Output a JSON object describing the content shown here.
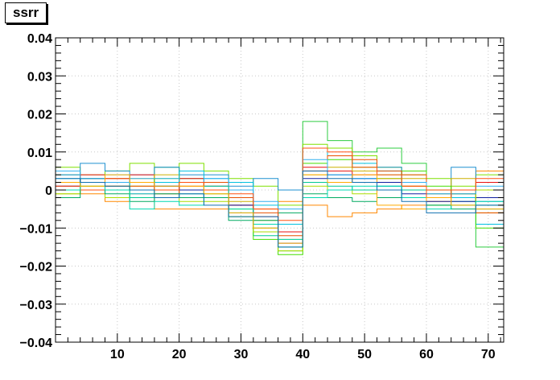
{
  "chart_data": {
    "type": "line",
    "title": "ssrr",
    "xlabel": "",
    "ylabel": "",
    "xlim": [
      0,
      72.5
    ],
    "ylim": [
      -0.04,
      0.04
    ],
    "grid": true,
    "x_bin_edges": [
      0,
      4,
      8,
      12,
      16,
      20,
      24,
      28,
      32,
      36,
      40,
      44,
      48,
      52,
      56,
      60,
      64,
      68,
      72.5
    ],
    "xticks": [
      10,
      20,
      30,
      40,
      50,
      60,
      70
    ],
    "xtick_labels": [
      "10",
      "20",
      "30",
      "40",
      "50",
      "60",
      "70"
    ],
    "yticks": [
      -0.04,
      -0.03,
      -0.02,
      -0.01,
      0,
      0.01,
      0.02,
      0.03,
      0.04
    ],
    "ytick_labels": [
      "−0.04",
      "−0.03",
      "−0.02",
      "−0.01",
      "0",
      "0.01",
      "0.02",
      "0.03",
      "0.04"
    ],
    "series": [
      {
        "color": "#2ecc40",
        "values": [
          0.004,
          0.003,
          0.002,
          0.001,
          0.006,
          0.003,
          0.001,
          -0.007,
          -0.01,
          -0.016,
          0.018,
          0.013,
          0.01,
          0.011,
          0.007,
          -0.002,
          0.0,
          -0.015
        ]
      },
      {
        "color": "#7fe000",
        "values": [
          0.006,
          0.004,
          0.005,
          0.007,
          0.002,
          0.007,
          0.005,
          0.003,
          0.001,
          -0.004,
          0.012,
          0.011,
          0.009,
          0.006,
          0.004,
          0.003,
          0.001,
          0.004
        ]
      },
      {
        "color": "#ff8800",
        "values": [
          0.0,
          -0.001,
          -0.003,
          -0.001,
          -0.005,
          -0.005,
          -0.005,
          -0.004,
          -0.005,
          -0.003,
          -0.004,
          -0.007,
          -0.006,
          -0.005,
          -0.004,
          -0.003,
          -0.002,
          0.005
        ]
      },
      {
        "color": "#1e90d0",
        "values": [
          0.004,
          0.007,
          0.005,
          0.004,
          0.006,
          0.004,
          0.004,
          0.001,
          0.003,
          0.0,
          0.002,
          0.004,
          0.003,
          0.006,
          0.002,
          -0.001,
          0.006,
          -0.003
        ]
      },
      {
        "color": "#e81010",
        "values": [
          0.001,
          0.004,
          0.003,
          0.004,
          0.002,
          0.003,
          0.001,
          -0.004,
          -0.007,
          -0.011,
          0.006,
          0.005,
          0.004,
          0.003,
          0.001,
          -0.002,
          -0.001,
          0.002
        ]
      },
      {
        "color": "#00c890",
        "values": [
          0.002,
          0.001,
          0.0,
          -0.002,
          0.001,
          -0.001,
          -0.002,
          -0.006,
          -0.012,
          -0.015,
          0.002,
          0.001,
          0.0,
          0.001,
          0.0,
          -0.004,
          -0.003,
          -0.005
        ]
      },
      {
        "color": "#ccb000",
        "values": [
          -0.001,
          0.002,
          0.001,
          0.003,
          0.004,
          0.002,
          0.0,
          -0.003,
          -0.008,
          -0.013,
          0.004,
          0.006,
          0.005,
          0.002,
          0.003,
          -0.001,
          0.003,
          -0.006
        ]
      },
      {
        "color": "#00c0e0",
        "values": [
          0.003,
          0.0,
          0.004,
          -0.001,
          0.002,
          0.005,
          0.003,
          0.002,
          -0.004,
          -0.009,
          0.011,
          0.009,
          0.007,
          0.005,
          0.002,
          0.0,
          -0.002,
          -0.009
        ]
      },
      {
        "color": "#44dd00",
        "values": [
          0.0,
          0.003,
          0.001,
          0.0,
          0.003,
          0.0,
          -0.001,
          -0.005,
          -0.013,
          -0.017,
          0.007,
          0.008,
          0.006,
          0.004,
          0.005,
          0.001,
          -0.001,
          -0.01
        ]
      },
      {
        "color": "#e85000",
        "values": [
          0.002,
          0.002,
          0.003,
          0.002,
          -0.001,
          0.001,
          0.002,
          -0.002,
          -0.006,
          -0.012,
          0.005,
          0.009,
          0.008,
          0.005,
          0.004,
          0.0,
          0.0,
          -0.006
        ]
      },
      {
        "color": "#1020a0",
        "values": [
          0.001,
          0.003,
          0.002,
          0.002,
          0.001,
          0.0,
          -0.002,
          -0.004,
          -0.009,
          -0.014,
          0.003,
          0.004,
          0.003,
          0.002,
          -0.001,
          -0.003,
          -0.003,
          -0.002
        ]
      },
      {
        "color": "#aadd00",
        "values": [
          -0.001,
          0.001,
          -0.002,
          0.001,
          -0.002,
          -0.003,
          -0.003,
          -0.007,
          -0.011,
          -0.016,
          0.001,
          0.0,
          -0.001,
          0.003,
          0.001,
          -0.004,
          -0.004,
          0.0
        ]
      },
      {
        "color": "#00aa60",
        "values": [
          -0.002,
          0.0,
          -0.001,
          -0.003,
          -0.001,
          -0.002,
          -0.002,
          -0.008,
          -0.008,
          -0.006,
          -0.001,
          -0.002,
          -0.003,
          -0.002,
          -0.002,
          -0.004,
          -0.005,
          -0.004
        ]
      },
      {
        "color": "#30b0f0",
        "values": [
          0.005,
          0.003,
          0.002,
          0.003,
          0.003,
          0.002,
          0.003,
          0.0,
          -0.003,
          -0.005,
          0.008,
          0.004,
          0.003,
          0.001,
          0.002,
          -0.001,
          -0.001,
          0.001
        ]
      },
      {
        "color": "#ff5010",
        "values": [
          0.001,
          0.0,
          0.001,
          0.001,
          0.0,
          0.002,
          0.0,
          -0.001,
          -0.005,
          -0.008,
          0.011,
          0.01,
          0.006,
          0.004,
          0.001,
          -0.002,
          0.0,
          0.003
        ]
      },
      {
        "color": "#00d8b0",
        "values": [
          0.0,
          0.002,
          0.0,
          -0.005,
          -0.003,
          -0.004,
          0.001,
          -0.005,
          -0.009,
          -0.013,
          -0.002,
          0.0,
          0.001,
          0.001,
          -0.002,
          -0.005,
          -0.004,
          -0.003
        ]
      },
      {
        "color": "#ffaa00",
        "values": [
          0.002,
          0.001,
          0.004,
          0.002,
          0.001,
          0.001,
          -0.001,
          -0.006,
          -0.01,
          -0.014,
          0.004,
          0.002,
          0.004,
          -0.004,
          -0.005,
          -0.002,
          -0.004,
          -0.005
        ]
      },
      {
        "color": "#1070b0",
        "values": [
          0.003,
          0.002,
          0.001,
          0.0,
          -0.002,
          -0.001,
          -0.004,
          -0.007,
          -0.007,
          -0.015,
          0.005,
          0.003,
          0.002,
          0.0,
          -0.003,
          -0.006,
          -0.006,
          -0.004
        ]
      }
    ]
  }
}
